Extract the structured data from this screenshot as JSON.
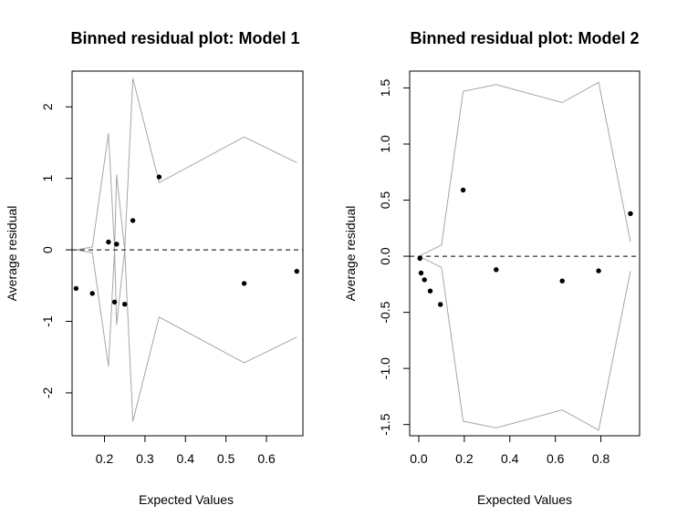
{
  "chart_data": [
    {
      "type": "scatter",
      "title": "Binned residual plot: Model 1",
      "xlabel": "Expected Values",
      "ylabel": "Average residual",
      "xlim": [
        0.12,
        0.69
      ],
      "ylim": [
        -2.6,
        2.5
      ],
      "xticks": [
        0.2,
        0.3,
        0.4,
        0.5,
        0.6
      ],
      "xtick_labels": [
        "0.2",
        "0.3",
        "0.4",
        "0.5",
        "0.6"
      ],
      "yticks": [
        -2,
        -1,
        0,
        1,
        2
      ],
      "ytick_labels": [
        "-2",
        "-1",
        "0",
        "1",
        "2"
      ],
      "reference_line": 0,
      "points": [
        {
          "x": 0.13,
          "y": -0.54
        },
        {
          "x": 0.17,
          "y": -0.61
        },
        {
          "x": 0.21,
          "y": 0.11
        },
        {
          "x": 0.225,
          "y": -0.73
        },
        {
          "x": 0.23,
          "y": 0.08
        },
        {
          "x": 0.25,
          "y": -0.76
        },
        {
          "x": 0.27,
          "y": 0.41
        },
        {
          "x": 0.335,
          "y": 1.02
        },
        {
          "x": 0.545,
          "y": -0.47
        },
        {
          "x": 0.675,
          "y": -0.3
        }
      ],
      "band": {
        "x": [
          0.13,
          0.17,
          0.21,
          0.225,
          0.23,
          0.25,
          0.27,
          0.335,
          0.545,
          0.675
        ],
        "upper": [
          0.0,
          0.04,
          1.63,
          0.0,
          1.05,
          0.0,
          2.4,
          0.94,
          1.58,
          1.22
        ]
      },
      "colors": {
        "points": "#000000",
        "band": "#a6a6a6",
        "reference": "#000000"
      }
    },
    {
      "type": "scatter",
      "title": "Binned residual plot: Model 2",
      "xlabel": "Expected Values",
      "ylabel": "Average residual",
      "xlim": [
        -0.04,
        0.97
      ],
      "ylim": [
        -1.6,
        1.65
      ],
      "xticks": [
        0.0,
        0.2,
        0.4,
        0.6,
        0.8
      ],
      "xtick_labels": [
        "0.0",
        "0.2",
        "0.4",
        "0.6",
        "0.8"
      ],
      "yticks": [
        -1.5,
        -1.0,
        -0.5,
        0.0,
        0.5,
        1.0,
        1.5
      ],
      "ytick_labels": [
        "-1.5",
        "-1.0",
        "-0.5",
        "0.0",
        "0.5",
        "1.0",
        "1.5"
      ],
      "reference_line": 0,
      "points": [
        {
          "x": 0.005,
          "y": -0.02
        },
        {
          "x": 0.01,
          "y": -0.15
        },
        {
          "x": 0.025,
          "y": -0.21
        },
        {
          "x": 0.05,
          "y": -0.31
        },
        {
          "x": 0.095,
          "y": -0.43
        },
        {
          "x": 0.195,
          "y": 0.59
        },
        {
          "x": 0.34,
          "y": -0.12
        },
        {
          "x": 0.63,
          "y": -0.22
        },
        {
          "x": 0.79,
          "y": -0.13
        },
        {
          "x": 0.93,
          "y": 0.38
        }
      ],
      "band": {
        "x": [
          0.0,
          0.05,
          0.1,
          0.195,
          0.34,
          0.63,
          0.79,
          0.93
        ],
        "upper": [
          0.0,
          0.05,
          0.1,
          1.47,
          1.53,
          1.37,
          1.55,
          0.13
        ]
      },
      "colors": {
        "points": "#000000",
        "band": "#a6a6a6",
        "reference": "#000000"
      }
    }
  ]
}
